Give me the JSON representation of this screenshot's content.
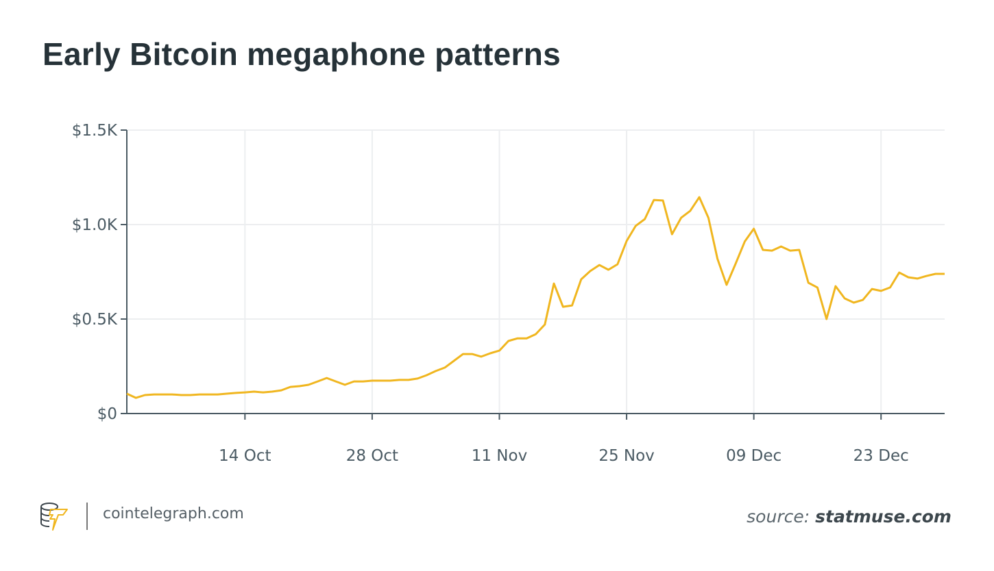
{
  "chart_data": {
    "type": "line",
    "title": "Early Bitcoin megaphone patterns",
    "xlabel": "",
    "ylabel": "",
    "ylim": [
      0,
      1500
    ],
    "y_ticks": [
      0,
      500,
      1000,
      1500
    ],
    "y_tick_labels": [
      "$0",
      "$0.5K",
      "$1.0K",
      "$1.5K"
    ],
    "x_tick_labels": [
      "14 Oct",
      "28 Oct",
      "11 Nov",
      "25 Nov",
      "09 Dec",
      "23 Dec"
    ],
    "x_tick_dates": [
      "Oct 14",
      "Oct 28",
      "Nov 11",
      "Nov 25",
      "Dec 09",
      "Dec 23"
    ],
    "grid": true,
    "line_color": "#f0b61f",
    "x": [
      "Oct 01",
      "Oct 02",
      "Oct 03",
      "Oct 04",
      "Oct 05",
      "Oct 06",
      "Oct 07",
      "Oct 08",
      "Oct 09",
      "Oct 10",
      "Oct 11",
      "Oct 12",
      "Oct 13",
      "Oct 14",
      "Oct 15",
      "Oct 16",
      "Oct 17",
      "Oct 18",
      "Oct 19",
      "Oct 20",
      "Oct 21",
      "Oct 22",
      "Oct 23",
      "Oct 24",
      "Oct 25",
      "Oct 26",
      "Oct 27",
      "Oct 28",
      "Oct 29",
      "Oct 30",
      "Oct 31",
      "Nov 01",
      "Nov 02",
      "Nov 03",
      "Nov 04",
      "Nov 05",
      "Nov 06",
      "Nov 07",
      "Nov 08",
      "Nov 09",
      "Nov 10",
      "Nov 11",
      "Nov 12",
      "Nov 13",
      "Nov 14",
      "Nov 15",
      "Nov 16",
      "Nov 17",
      "Nov 18",
      "Nov 19",
      "Nov 20",
      "Nov 21",
      "Nov 22",
      "Nov 23",
      "Nov 24",
      "Nov 25",
      "Nov 26",
      "Nov 27",
      "Nov 28",
      "Nov 29",
      "Nov 30",
      "Dec 01",
      "Dec 02",
      "Dec 03",
      "Dec 04",
      "Dec 05",
      "Dec 06",
      "Dec 07",
      "Dec 08",
      "Dec 09",
      "Dec 10",
      "Dec 11",
      "Dec 12",
      "Dec 13",
      "Dec 14",
      "Dec 15",
      "Dec 16",
      "Dec 17",
      "Dec 18",
      "Dec 19",
      "Dec 20",
      "Dec 21",
      "Dec 22",
      "Dec 23",
      "Dec 24",
      "Dec 25",
      "Dec 26",
      "Dec 27",
      "Dec 28",
      "Dec 29",
      "Dec 30"
    ],
    "values": [
      105,
      83,
      98,
      101,
      101,
      101,
      98,
      98,
      101,
      101,
      101,
      105,
      109,
      112,
      116,
      112,
      116,
      123,
      141,
      145,
      152,
      170,
      188,
      170,
      152,
      170,
      170,
      174,
      174,
      174,
      178,
      178,
      185,
      203,
      225,
      243,
      279,
      315,
      315,
      301,
      319,
      333,
      384,
      398,
      398,
      420,
      471,
      688,
      565,
      572,
      710,
      754,
      786,
      761,
      790,
      913,
      993,
      1029,
      1130,
      1127,
      949,
      1036,
      1072,
      1145,
      1036,
      819,
      681,
      793,
      910,
      978,
      866,
      862,
      884,
      862,
      866,
      692,
      667,
      500,
      674,
      609,
      587,
      601,
      659,
      649,
      667,
      746,
      721,
      714,
      728,
      739,
      739
    ]
  },
  "footer": {
    "site": "cointelegraph.com",
    "logo_text": "cointelegraph",
    "source_prefix": "source:",
    "source_name": "statmuse.com"
  }
}
